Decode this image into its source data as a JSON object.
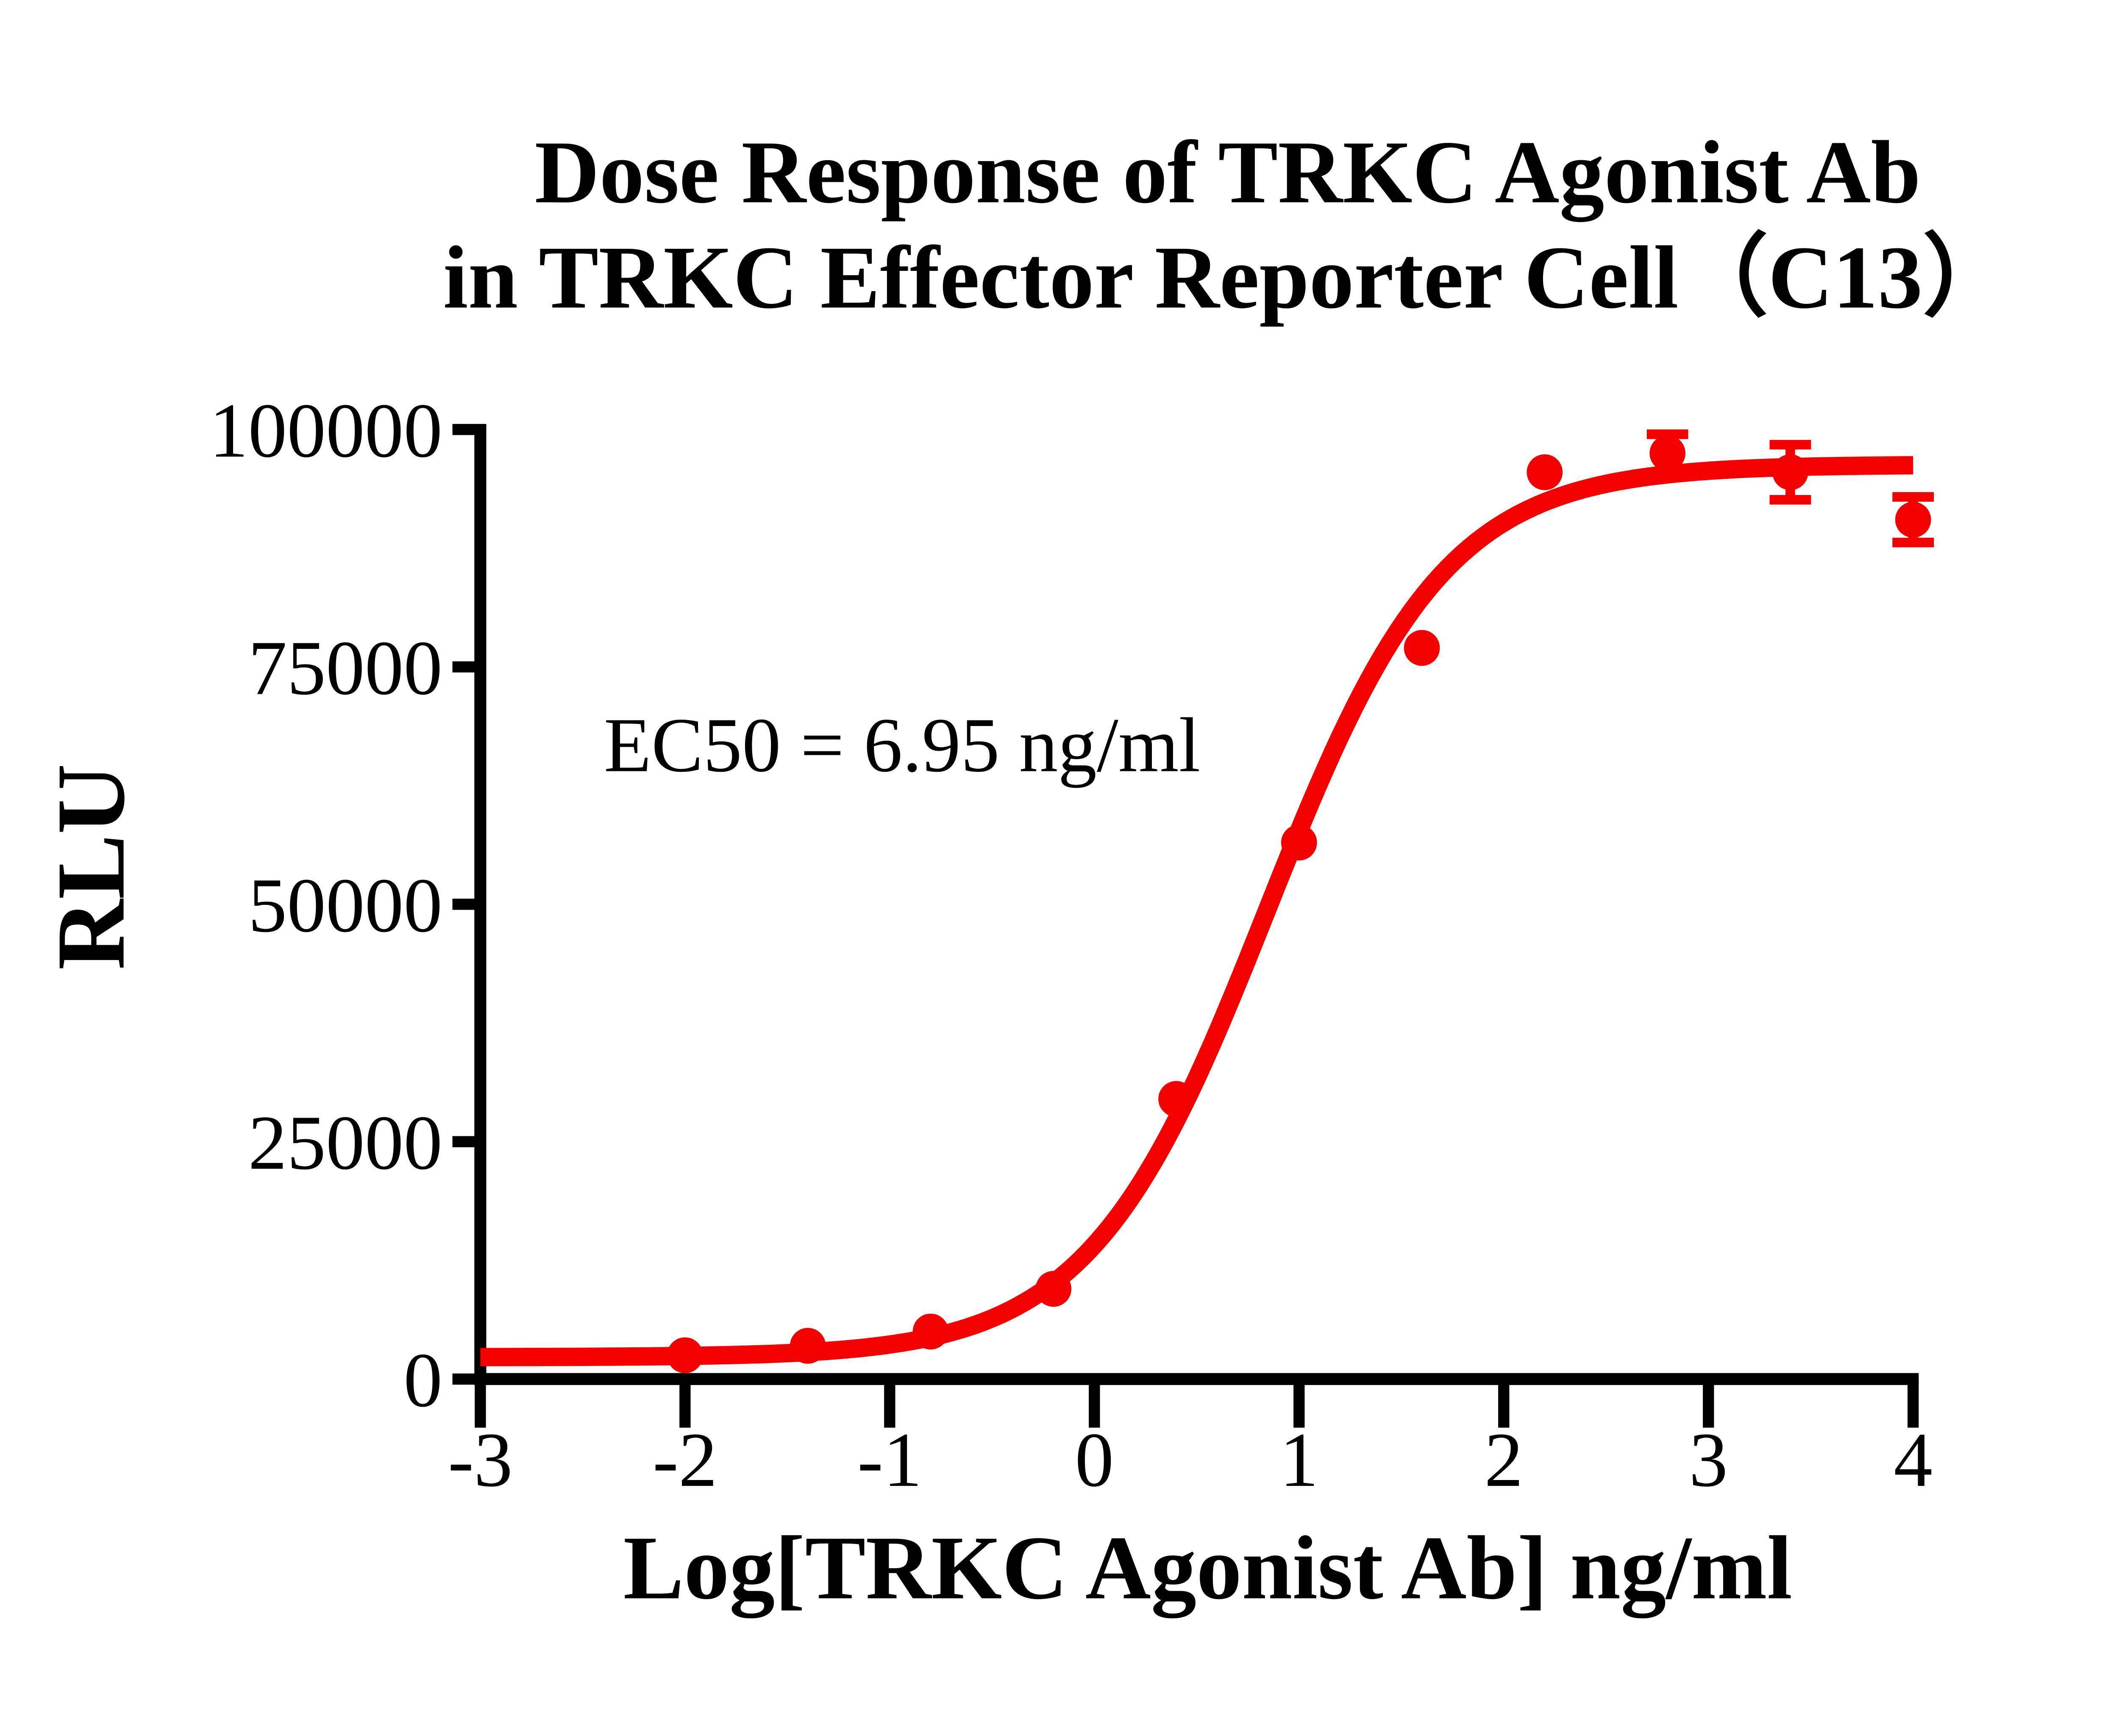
{
  "chart_data": {
    "type": "scatter",
    "title_line1": "Dose Response of TRKC Agonist Ab",
    "title_line2": "in TRKC Effector Reporter Cell（C13）",
    "xlabel": "Log[TRKC Agonist Ab] ng/ml",
    "ylabel": "RLU",
    "annotation": "EC50 = 6.95 ng/ml",
    "ec50_ng_ml": 6.95,
    "series_color": "#f40000",
    "axis_color": "#000000",
    "background_color": "#ffffff",
    "grid": "off",
    "legend": "none",
    "xlim": [
      -3,
      4
    ],
    "ylim": [
      0,
      100000
    ],
    "x_ticks": [
      -3,
      -2,
      -1,
      0,
      1,
      2,
      3,
      4
    ],
    "y_ticks": [
      0,
      25000,
      50000,
      75000,
      100000
    ],
    "points": [
      {
        "x": -2.0,
        "y": 2500,
        "err": 0
      },
      {
        "x": -1.4,
        "y": 3500,
        "err": 0
      },
      {
        "x": -0.8,
        "y": 5000,
        "err": 0
      },
      {
        "x": -0.2,
        "y": 9500,
        "err": 0
      },
      {
        "x": 0.4,
        "y": 29500,
        "err": 0
      },
      {
        "x": 1.0,
        "y": 56500,
        "err": 0
      },
      {
        "x": 1.6,
        "y": 77000,
        "err": 0
      },
      {
        "x": 2.2,
        "y": 95500,
        "err": 0
      },
      {
        "x": 2.8,
        "y": 97500,
        "err": 2000
      },
      {
        "x": 3.4,
        "y": 95500,
        "err": 2900
      },
      {
        "x": 4.0,
        "y": 90500,
        "err": 2400
      }
    ],
    "fit_curve": {
      "model": "4PL",
      "bottom": 2300,
      "top": 96300,
      "log_ec50": 0.842,
      "hill": 1.0
    }
  }
}
